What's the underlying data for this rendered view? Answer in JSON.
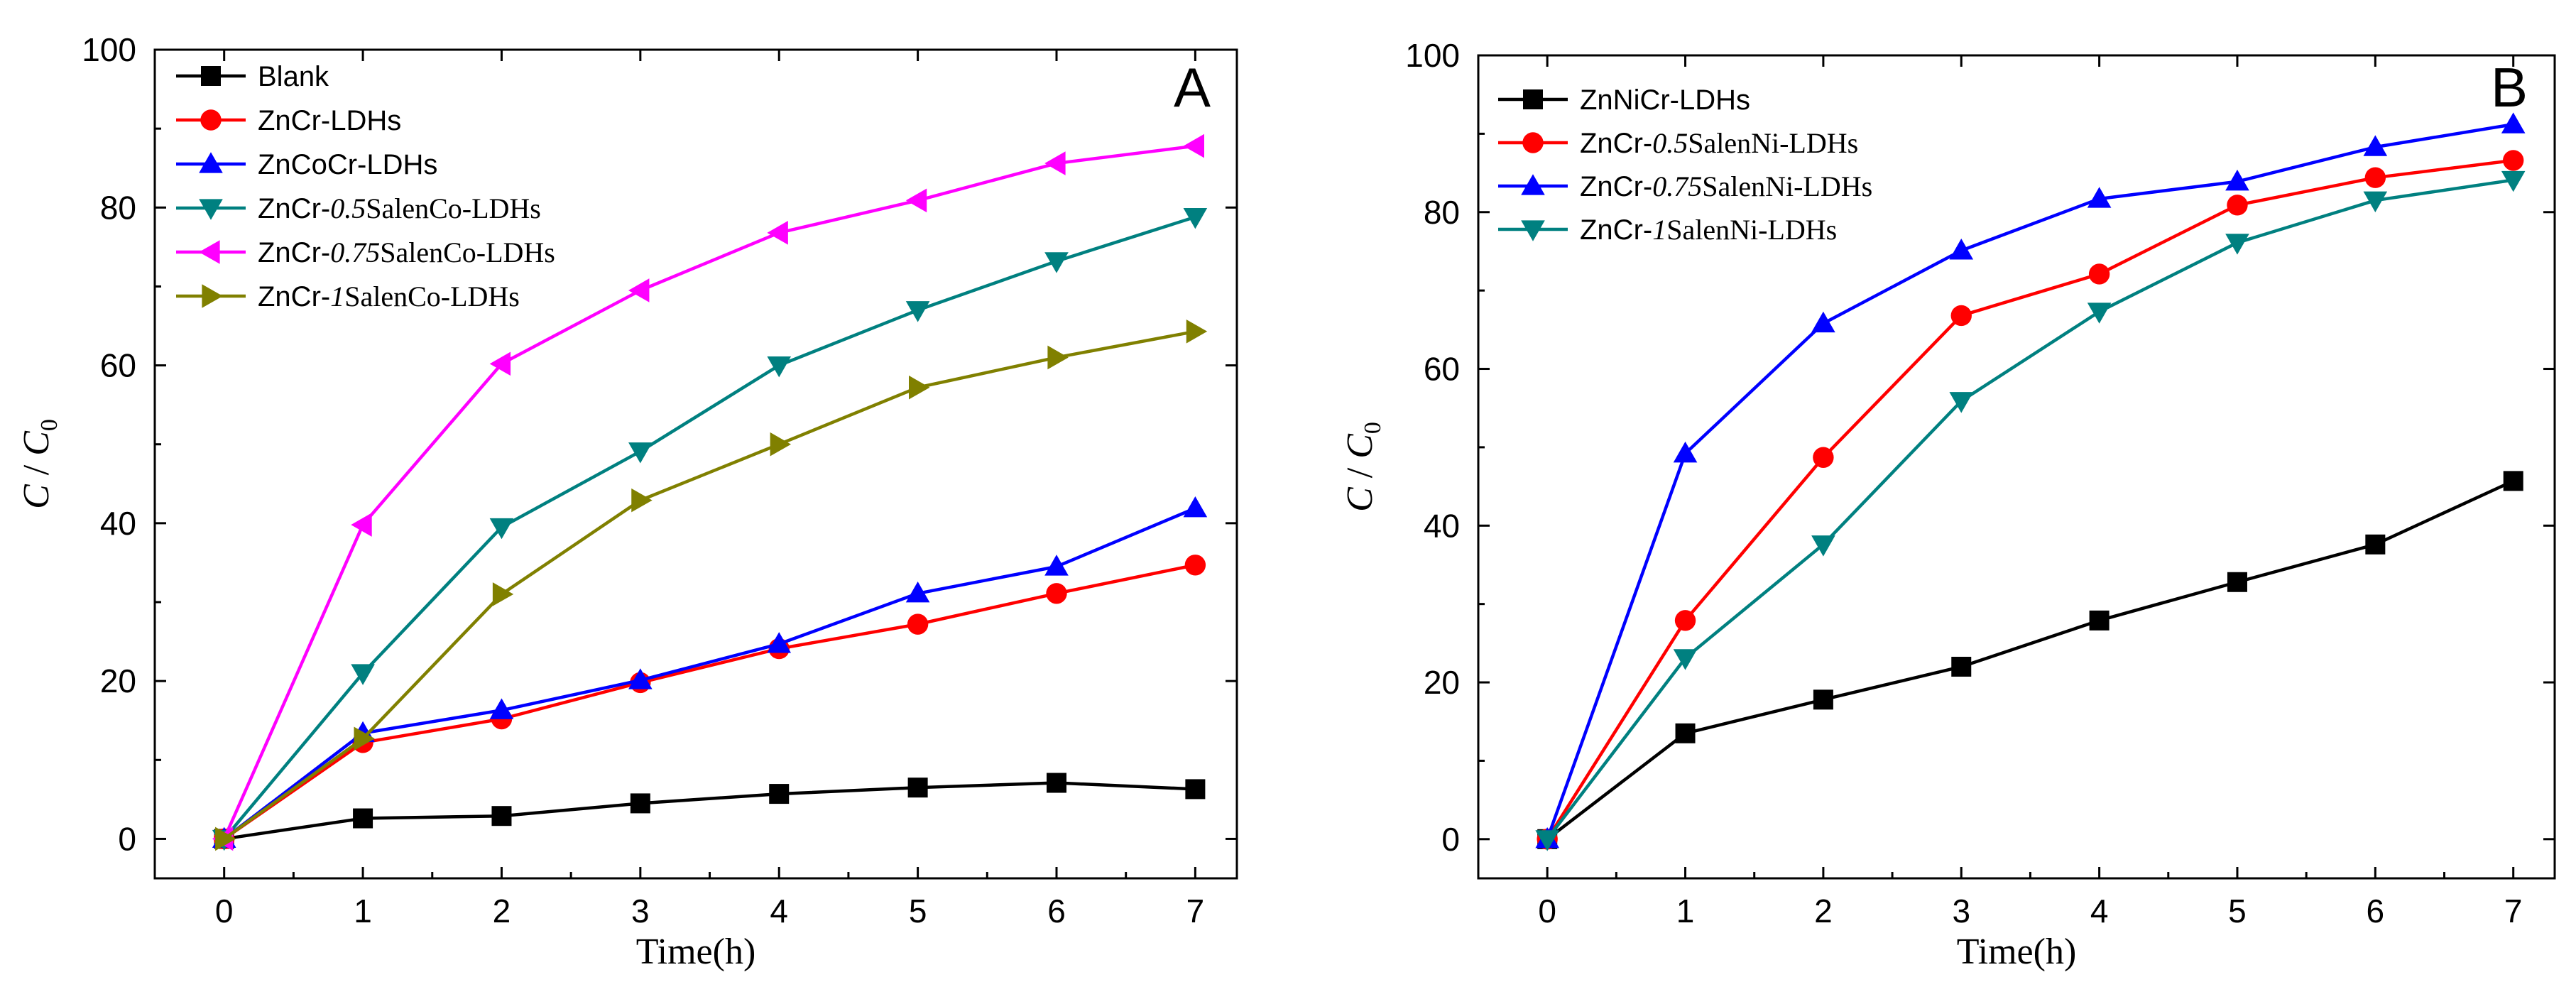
{
  "chart_data": [
    {
      "type": "line",
      "panel_label": "A",
      "xlabel": "Time(h)",
      "ylabel": "C / C0",
      "ylabel_parts": {
        "c": "C",
        "slash": " / ",
        "c0": "C",
        "sub": "0"
      },
      "xlim": [
        -0.5,
        7.3
      ],
      "ylim": [
        -5,
        100
      ],
      "xticks": [
        0,
        1,
        2,
        3,
        4,
        5,
        6,
        7
      ],
      "yticks": [
        0,
        20,
        40,
        60,
        80,
        100
      ],
      "legend_position": "top-left",
      "x": [
        0,
        1,
        2,
        3,
        4,
        5,
        6,
        7
      ],
      "series": [
        {
          "name": "Blank",
          "legend": {
            "pre": "Blank",
            "it": "",
            "post": ""
          },
          "color": "#000000",
          "marker": "square",
          "values": [
            0,
            2.6,
            2.9,
            4.5,
            5.7,
            6.5,
            7.1,
            6.3
          ]
        },
        {
          "name": "ZnCr-LDHs",
          "legend": {
            "pre": "ZnCr-LDHs",
            "it": "",
            "post": ""
          },
          "color": "#ff0000",
          "marker": "circle",
          "values": [
            0,
            12.2,
            15.2,
            19.8,
            24.1,
            27.2,
            31.1,
            34.7
          ]
        },
        {
          "name": "ZnCoCr-LDHs",
          "legend": {
            "pre": "ZnCoCr-LDHs",
            "it": "",
            "post": ""
          },
          "color": "#0000ff",
          "marker": "triangle-up",
          "values": [
            0,
            13.4,
            16.3,
            20.1,
            24.7,
            31.1,
            34.5,
            41.9
          ]
        },
        {
          "name": "ZnCr-0.5SalenCo-LDHs",
          "legend": {
            "pre": "ZnCr-",
            "it": "0.5",
            "post": "SalenCo-LDHs"
          },
          "color": "#008080",
          "marker": "triangle-down",
          "values": [
            0,
            21.0,
            39.5,
            49.1,
            60.0,
            67.0,
            73.2,
            78.8
          ]
        },
        {
          "name": "ZnCr-0.75SalenCo-LDHs",
          "legend": {
            "pre": "ZnCr-",
            "it": "0.75",
            "post": "SalenCo-LDHs"
          },
          "color": "#ff00ff",
          "marker": "triangle-left",
          "values": [
            0,
            39.8,
            60.2,
            69.5,
            76.8,
            80.9,
            85.6,
            87.8
          ]
        },
        {
          "name": "ZnCr-1SalenCo-LDHs",
          "legend": {
            "pre": "ZnCr-",
            "it": "1",
            "post": "SalenCo-LDHs"
          },
          "color": "#808000",
          "marker": "triangle-right",
          "values": [
            0,
            12.7,
            31.0,
            42.9,
            50.0,
            57.2,
            61.0,
            64.3
          ]
        }
      ]
    },
    {
      "type": "line",
      "panel_label": "B",
      "xlabel": "Time(h)",
      "ylabel": "C / C0",
      "ylabel_parts": {
        "c": "C",
        "slash": " / ",
        "c0": "C",
        "sub": "0"
      },
      "xlim": [
        -0.5,
        7.3
      ],
      "ylim": [
        -5,
        100
      ],
      "xticks": [
        0,
        1,
        2,
        3,
        4,
        5,
        6,
        7
      ],
      "yticks": [
        0,
        20,
        40,
        60,
        80,
        100
      ],
      "legend_position": "top-left",
      "x": [
        0,
        1,
        2,
        3,
        4,
        5,
        6,
        7
      ],
      "series": [
        {
          "name": "ZnNiCr-LDHs",
          "legend": {
            "pre": "ZnNiCr-LDHs",
            "it": "",
            "post": ""
          },
          "color": "#000000",
          "marker": "square",
          "values": [
            0,
            13.5,
            17.8,
            22.0,
            27.9,
            32.8,
            37.6,
            45.7
          ]
        },
        {
          "name": "ZnCr-0.5SalenNi-LDHs",
          "legend": {
            "pre": "ZnCr-",
            "it": "0.5",
            "post": "SalenNi-LDHs"
          },
          "color": "#ff0000",
          "marker": "circle",
          "values": [
            0,
            27.9,
            48.7,
            66.8,
            72.1,
            80.9,
            84.4,
            86.6
          ]
        },
        {
          "name": "ZnCr-0.75SalenNi-LDHs",
          "legend": {
            "pre": "ZnCr-",
            "it": "0.75",
            "post": "SalenNi-LDHs"
          },
          "color": "#0000ff",
          "marker": "triangle-up",
          "values": [
            0,
            49.2,
            65.8,
            75.1,
            81.7,
            83.9,
            88.3,
            91.2
          ]
        },
        {
          "name": "ZnCr-1SalenNi-LDHs",
          "legend": {
            "pre": "ZnCr-",
            "it": "1",
            "post": "SalenNi-LDHs"
          },
          "color": "#008080",
          "marker": "triangle-down",
          "values": [
            0,
            23.1,
            37.6,
            55.9,
            67.3,
            76.1,
            81.5,
            84.1
          ]
        }
      ]
    }
  ]
}
